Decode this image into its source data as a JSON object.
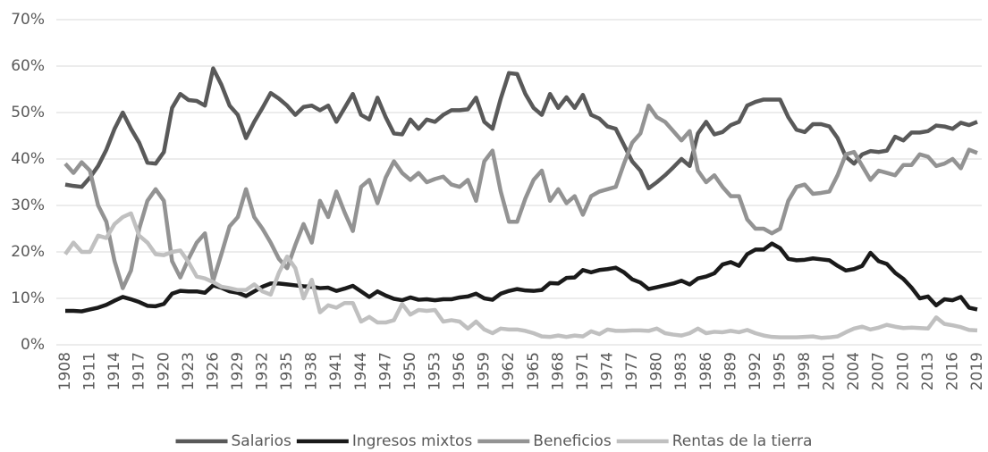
{
  "chart_data": {
    "type": "line",
    "x": [
      1908,
      1909,
      1910,
      1911,
      1912,
      1913,
      1914,
      1915,
      1916,
      1917,
      1918,
      1919,
      1920,
      1921,
      1922,
      1923,
      1924,
      1925,
      1926,
      1927,
      1928,
      1929,
      1930,
      1931,
      1932,
      1933,
      1934,
      1935,
      1936,
      1937,
      1938,
      1939,
      1940,
      1941,
      1942,
      1943,
      1944,
      1945,
      1946,
      1947,
      1948,
      1949,
      1950,
      1951,
      1952,
      1953,
      1954,
      1955,
      1956,
      1957,
      1958,
      1959,
      1960,
      1961,
      1962,
      1963,
      1964,
      1965,
      1966,
      1967,
      1968,
      1969,
      1970,
      1971,
      1972,
      1973,
      1974,
      1975,
      1976,
      1977,
      1978,
      1979,
      1980,
      1981,
      1982,
      1983,
      1984,
      1985,
      1986,
      1987,
      1988,
      1989,
      1990,
      1991,
      1992,
      1993,
      1994,
      1995,
      1996,
      1997,
      1998,
      1999,
      2000,
      2001,
      2002,
      2003,
      2004,
      2005,
      2006,
      2007,
      2008,
      2009,
      2010,
      2011,
      2012,
      2013,
      2014,
      2015,
      2016,
      2017,
      2018,
      2019
    ],
    "xlim": [
      1908,
      2019
    ],
    "xticks": [
      1908,
      1911,
      1914,
      1917,
      1920,
      1923,
      1926,
      1929,
      1932,
      1935,
      1938,
      1941,
      1944,
      1947,
      1950,
      1953,
      1956,
      1959,
      1962,
      1965,
      1968,
      1971,
      1974,
      1977,
      1980,
      1983,
      1986,
      1989,
      1992,
      1995,
      1998,
      2001,
      2004,
      2007,
      2010,
      2013,
      2016,
      2019
    ],
    "ylim": [
      0,
      70
    ],
    "yticks": [
      {
        "value": 0,
        "label": "0%"
      },
      {
        "value": 10,
        "label": "10%"
      },
      {
        "value": 20,
        "label": "20%"
      },
      {
        "value": 30,
        "label": "30%"
      },
      {
        "value": 40,
        "label": "40%"
      },
      {
        "value": 50,
        "label": "50%"
      },
      {
        "value": 60,
        "label": "60%"
      },
      {
        "value": 70,
        "label": "70%"
      }
    ],
    "grid": true,
    "legend": "bottom",
    "series": [
      {
        "name": "Salarios",
        "color": "#595959",
        "values": [
          34.5,
          34.2,
          34.0,
          36.0,
          38.5,
          42.0,
          46.5,
          50.0,
          46.5,
          43.5,
          39.2,
          39.0,
          41.5,
          51.0,
          54.0,
          52.7,
          52.5,
          51.5,
          59.5,
          56.0,
          51.5,
          49.5,
          44.5,
          48.0,
          51.0,
          54.2,
          53.0,
          51.5,
          49.5,
          51.2,
          51.5,
          50.5,
          51.5,
          48.0,
          51.0,
          54.0,
          49.5,
          48.5,
          53.2,
          49.0,
          45.5,
          45.3,
          48.5,
          46.5,
          48.5,
          48.0,
          49.5,
          50.5,
          50.5,
          50.7,
          53.2,
          48.0,
          46.5,
          53.0,
          58.5,
          58.3,
          54.0,
          51.0,
          49.5,
          54.0,
          51.0,
          53.3,
          51.0,
          53.8,
          49.5,
          48.7,
          47.0,
          46.5,
          43.0,
          39.5,
          37.5,
          33.7,
          35.0,
          36.5,
          38.2,
          40.0,
          38.5,
          45.5,
          48.0,
          45.3,
          45.8,
          47.3,
          48.0,
          51.5,
          52.3,
          52.8,
          52.8,
          52.8,
          49.0,
          46.3,
          45.8,
          47.5,
          47.5,
          47.0,
          44.5,
          40.5,
          39.0,
          41.0,
          41.7,
          41.5,
          41.8,
          44.8,
          44.0,
          45.7,
          45.7,
          46.0,
          47.2,
          47.0,
          46.5,
          47.8,
          47.3,
          48.0
        ]
      },
      {
        "name": "Ingresos mixtos",
        "color": "#1a1a1a",
        "values": [
          7.3,
          7.3,
          7.2,
          7.6,
          8.0,
          8.6,
          9.5,
          10.3,
          9.8,
          9.2,
          8.4,
          8.3,
          8.8,
          11.0,
          11.6,
          11.5,
          11.5,
          11.2,
          12.8,
          12.3,
          11.5,
          11.2,
          10.5,
          11.5,
          12.5,
          13.2,
          13.2,
          13.0,
          12.8,
          12.6,
          12.5,
          12.2,
          12.3,
          11.6,
          12.1,
          12.7,
          11.5,
          10.3,
          11.5,
          10.6,
          9.9,
          9.6,
          10.2,
          9.7,
          9.8,
          9.6,
          9.8,
          9.8,
          10.2,
          10.4,
          11.0,
          10.0,
          9.7,
          11.0,
          11.6,
          12.0,
          11.7,
          11.6,
          11.8,
          13.3,
          13.2,
          14.4,
          14.5,
          16.1,
          15.6,
          16.1,
          16.3,
          16.6,
          15.6,
          14.1,
          13.4,
          12.0,
          12.4,
          12.8,
          13.2,
          13.8,
          13.0,
          14.3,
          14.7,
          15.4,
          17.3,
          17.8,
          17.0,
          19.5,
          20.5,
          20.5,
          21.8,
          20.8,
          18.5,
          18.2,
          18.3,
          18.6,
          18.4,
          18.2,
          17.0,
          16.0,
          16.3,
          17.0,
          19.8,
          18.0,
          17.4,
          15.5,
          14.2,
          12.3,
          10.0,
          10.4,
          8.5,
          9.8,
          9.6,
          10.3,
          8.0,
          7.6
        ]
      },
      {
        "name": "Beneficios",
        "color": "#939393",
        "values": [
          39.0,
          37.0,
          39.3,
          37.5,
          30.0,
          26.5,
          18.0,
          12.2,
          16.0,
          25.0,
          31.0,
          33.5,
          31.0,
          18.0,
          14.5,
          18.5,
          22.0,
          24.0,
          13.8,
          19.5,
          25.5,
          27.5,
          33.5,
          27.5,
          25.0,
          22.0,
          18.5,
          16.5,
          21.5,
          26.0,
          22.0,
          31.0,
          27.5,
          33.0,
          28.5,
          24.5,
          34.0,
          35.5,
          30.5,
          36.0,
          39.5,
          37.0,
          35.5,
          37.0,
          35.0,
          35.7,
          36.2,
          34.5,
          34.0,
          35.5,
          31.0,
          39.5,
          41.8,
          33.0,
          26.5,
          26.5,
          31.5,
          35.5,
          37.5,
          31.0,
          33.5,
          30.5,
          32.0,
          28.0,
          32.0,
          33.0,
          33.5,
          34.0,
          39.0,
          43.5,
          45.5,
          51.5,
          49.0,
          48.0,
          46.0,
          44.0,
          46.0,
          37.5,
          35.0,
          36.5,
          34.0,
          32.0,
          32.0,
          27.0,
          25.0,
          25.0,
          24.0,
          25.0,
          31.0,
          34.0,
          34.5,
          32.5,
          32.7,
          33.0,
          36.5,
          41.0,
          41.5,
          38.5,
          35.5,
          37.5,
          37.0,
          36.5,
          38.7,
          38.7,
          41.0,
          40.5,
          38.5,
          39.0,
          40.0,
          38.0,
          42.0,
          41.3
        ]
      },
      {
        "name": "Rentas de la tierra",
        "color": "#c0c0c0",
        "values": [
          19.5,
          22.0,
          20.0,
          20.0,
          23.5,
          23.0,
          26.0,
          27.5,
          28.3,
          23.5,
          22.0,
          19.5,
          19.3,
          20.0,
          20.3,
          17.8,
          14.7,
          14.3,
          13.5,
          12.5,
          12.2,
          11.8,
          11.8,
          13.0,
          11.5,
          10.8,
          15.5,
          19.0,
          16.5,
          10.0,
          14.0,
          7.0,
          8.5,
          8.0,
          9.0,
          9.0,
          5.0,
          6.0,
          4.8,
          4.8,
          5.3,
          8.8,
          6.5,
          7.5,
          7.3,
          7.5,
          5.0,
          5.3,
          5.0,
          3.5,
          5.0,
          3.3,
          2.5,
          3.5,
          3.3,
          3.3,
          3.0,
          2.5,
          1.8,
          1.7,
          2.0,
          1.7,
          2.0,
          1.8,
          2.9,
          2.3,
          3.3,
          3.0,
          3.0,
          3.1,
          3.1,
          3.0,
          3.5,
          2.5,
          2.2,
          2.0,
          2.5,
          3.5,
          2.5,
          2.8,
          2.7,
          3.0,
          2.7,
          3.2,
          2.5,
          2.0,
          1.7,
          1.6,
          1.6,
          1.6,
          1.7,
          1.8,
          1.5,
          1.6,
          1.8,
          2.7,
          3.5,
          3.9,
          3.3,
          3.7,
          4.3,
          3.9,
          3.6,
          3.7,
          3.6,
          3.5,
          5.9,
          4.5,
          4.2,
          3.8,
          3.2,
          3.1
        ]
      }
    ]
  }
}
